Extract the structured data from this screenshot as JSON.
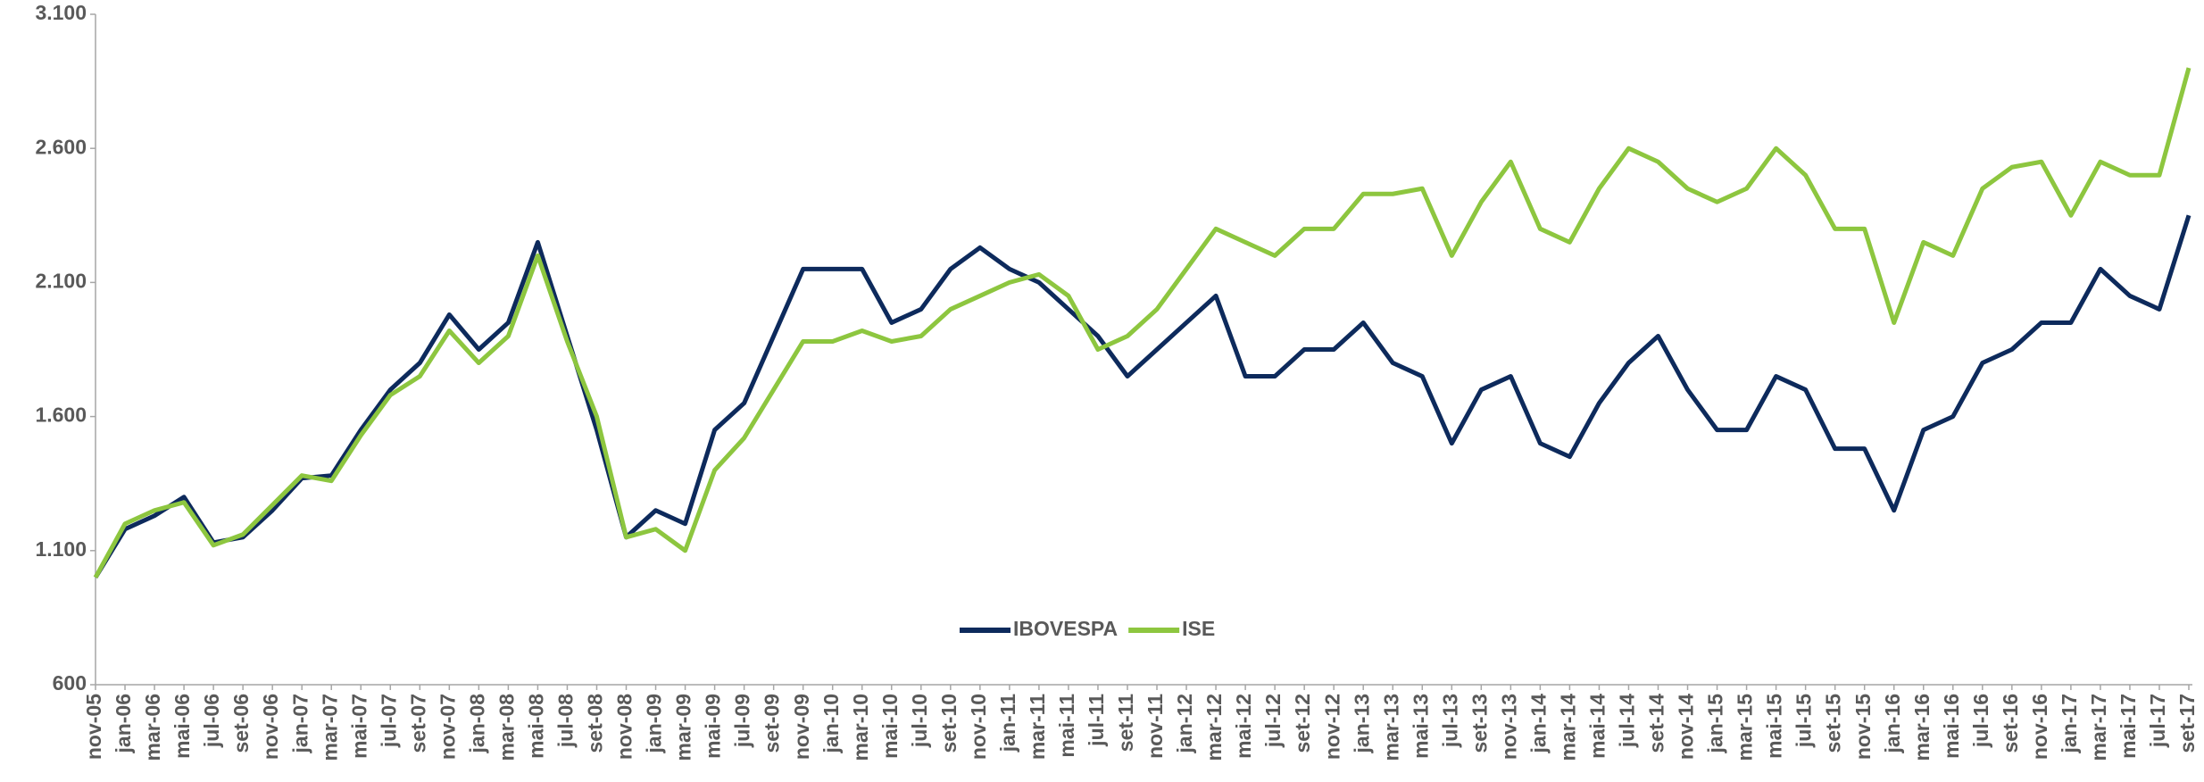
{
  "chart_data": {
    "type": "line",
    "categories": [
      "nov-05",
      "jan-06",
      "mar-06",
      "mai-06",
      "jul-06",
      "set-06",
      "nov-06",
      "jan-07",
      "mar-07",
      "mai-07",
      "jul-07",
      "set-07",
      "nov-07",
      "jan-08",
      "mar-08",
      "mai-08",
      "jul-08",
      "set-08",
      "nov-08",
      "jan-09",
      "mar-09",
      "mai-09",
      "jul-09",
      "set-09",
      "nov-09",
      "jan-10",
      "mar-10",
      "mai-10",
      "jul-10",
      "set-10",
      "nov-10",
      "jan-11",
      "mar-11",
      "mai-11",
      "jul-11",
      "set-11",
      "nov-11",
      "jan-12",
      "mar-12",
      "mai-12",
      "jul-12",
      "set-12",
      "nov-12",
      "jan-13",
      "mar-13",
      "mai-13",
      "jul-13",
      "set-13",
      "nov-13",
      "jan-14",
      "mar-14",
      "mai-14",
      "jul-14",
      "set-14",
      "nov-14",
      "jan-15",
      "mar-15",
      "mai-15",
      "jul-15",
      "set-15",
      "nov-15",
      "jan-16",
      "mar-16",
      "mai-16",
      "jul-16",
      "set-16",
      "nov-16",
      "jan-17",
      "mar-17",
      "mai-17",
      "jul-17",
      "set-17"
    ],
    "series": [
      {
        "name": "IBOVESPA",
        "color": "#0d2a5c",
        "values": [
          1000,
          1180,
          1230,
          1300,
          1130,
          1150,
          1250,
          1370,
          1380,
          1550,
          1700,
          1800,
          1980,
          1850,
          1950,
          2250,
          1900,
          1550,
          1150,
          1250,
          1200,
          1550,
          1650,
          1900,
          2150,
          2150,
          2150,
          1950,
          2000,
          2150,
          2230,
          2150,
          2100,
          2000,
          1900,
          1750,
          1850,
          1950,
          2050,
          1750,
          1750,
          1850,
          1850,
          1950,
          1800,
          1750,
          1500,
          1700,
          1750,
          1500,
          1450,
          1650,
          1800,
          1900,
          1700,
          1550,
          1550,
          1750,
          1700,
          1480,
          1480,
          1250,
          1550,
          1600,
          1800,
          1850,
          1950,
          1950,
          2150,
          2050,
          2000,
          2350
        ]
      },
      {
        "name": "ISE",
        "color": "#8dc63f",
        "values": [
          1000,
          1200,
          1250,
          1280,
          1120,
          1160,
          1270,
          1380,
          1360,
          1530,
          1680,
          1750,
          1920,
          1800,
          1900,
          2200,
          1880,
          1600,
          1150,
          1180,
          1100,
          1400,
          1520,
          1700,
          1880,
          1880,
          1920,
          1880,
          1900,
          2000,
          2050,
          2100,
          2130,
          2050,
          1850,
          1900,
          2000,
          2150,
          2300,
          2250,
          2200,
          2300,
          2300,
          2430,
          2430,
          2450,
          2200,
          2400,
          2550,
          2300,
          2250,
          2450,
          2600,
          2550,
          2450,
          2400,
          2450,
          2600,
          2500,
          2300,
          2300,
          1950,
          2250,
          2200,
          2450,
          2530,
          2550,
          2350,
          2550,
          2500,
          2500,
          2900
        ]
      }
    ],
    "ylim": [
      600,
      3100
    ],
    "yticks": [
      600,
      {
        "value": 1100,
        "label": "1.100"
      },
      {
        "value": 1600,
        "label": "1.600"
      },
      {
        "value": 2100,
        "label": "2.100"
      },
      {
        "value": 2600,
        "label": "2.600"
      },
      {
        "value": 3100,
        "label": "3.100"
      }
    ],
    "grid": false,
    "legend": "center"
  }
}
